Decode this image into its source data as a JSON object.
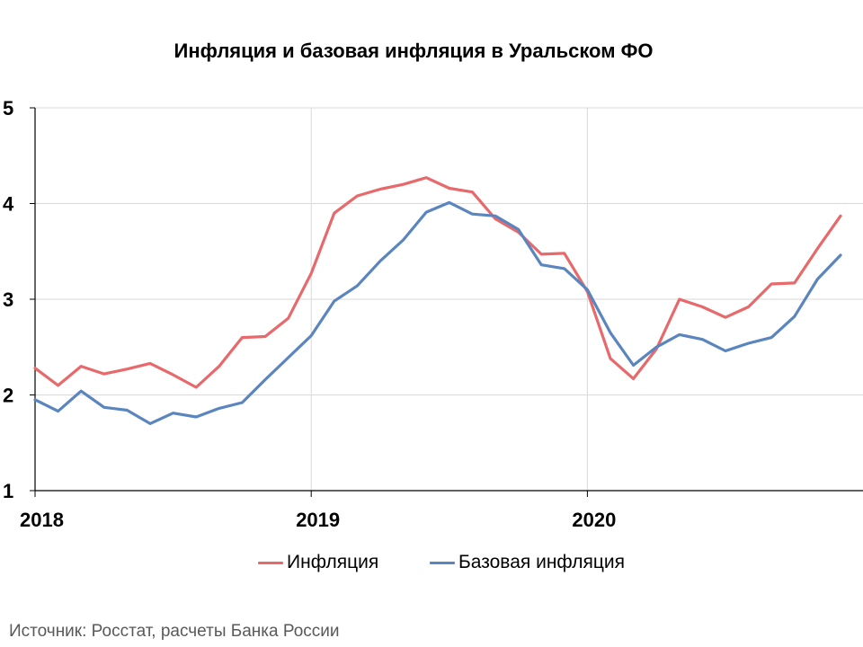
{
  "chart_data": {
    "type": "line",
    "title": "Инфляция и базовая инфляция в Уральском ФО",
    "ylim": [
      1,
      5
    ],
    "yticks": [
      "1",
      "2",
      "3",
      "4",
      "5"
    ],
    "x_start": "2018-01",
    "xticks": [
      {
        "label": "2018",
        "index": 0
      },
      {
        "label": "2019",
        "index": 12
      },
      {
        "label": "2020",
        "index": 24
      }
    ],
    "grid": true,
    "legend_position": "bottom",
    "series": [
      {
        "name": "Инфляция",
        "color": "#E8696B",
        "values": [
          2.28,
          2.1,
          2.3,
          2.22,
          2.27,
          2.33,
          2.21,
          2.08,
          2.3,
          2.6,
          2.61,
          2.8,
          3.27,
          3.9,
          4.08,
          4.15,
          4.2,
          4.27,
          4.16,
          4.12,
          3.84,
          3.7,
          3.47,
          3.48,
          3.08,
          2.38,
          2.17,
          2.48,
          3.0,
          2.92,
          2.81,
          2.92,
          3.16,
          3.17,
          3.53,
          3.87
        ]
      },
      {
        "name": "Базовая инфляция",
        "color": "#5B85BF",
        "values": [
          1.95,
          1.83,
          2.04,
          1.87,
          1.84,
          1.7,
          1.81,
          1.77,
          1.86,
          1.92,
          2.16,
          2.39,
          2.62,
          2.98,
          3.14,
          3.4,
          3.62,
          3.91,
          4.01,
          3.89,
          3.87,
          3.73,
          3.36,
          3.32,
          3.1,
          2.65,
          2.31,
          2.5,
          2.63,
          2.58,
          2.46,
          2.54,
          2.6,
          2.82,
          3.21,
          3.46
        ]
      }
    ]
  },
  "source": "Источник: Росстат, расчеты Банка России"
}
